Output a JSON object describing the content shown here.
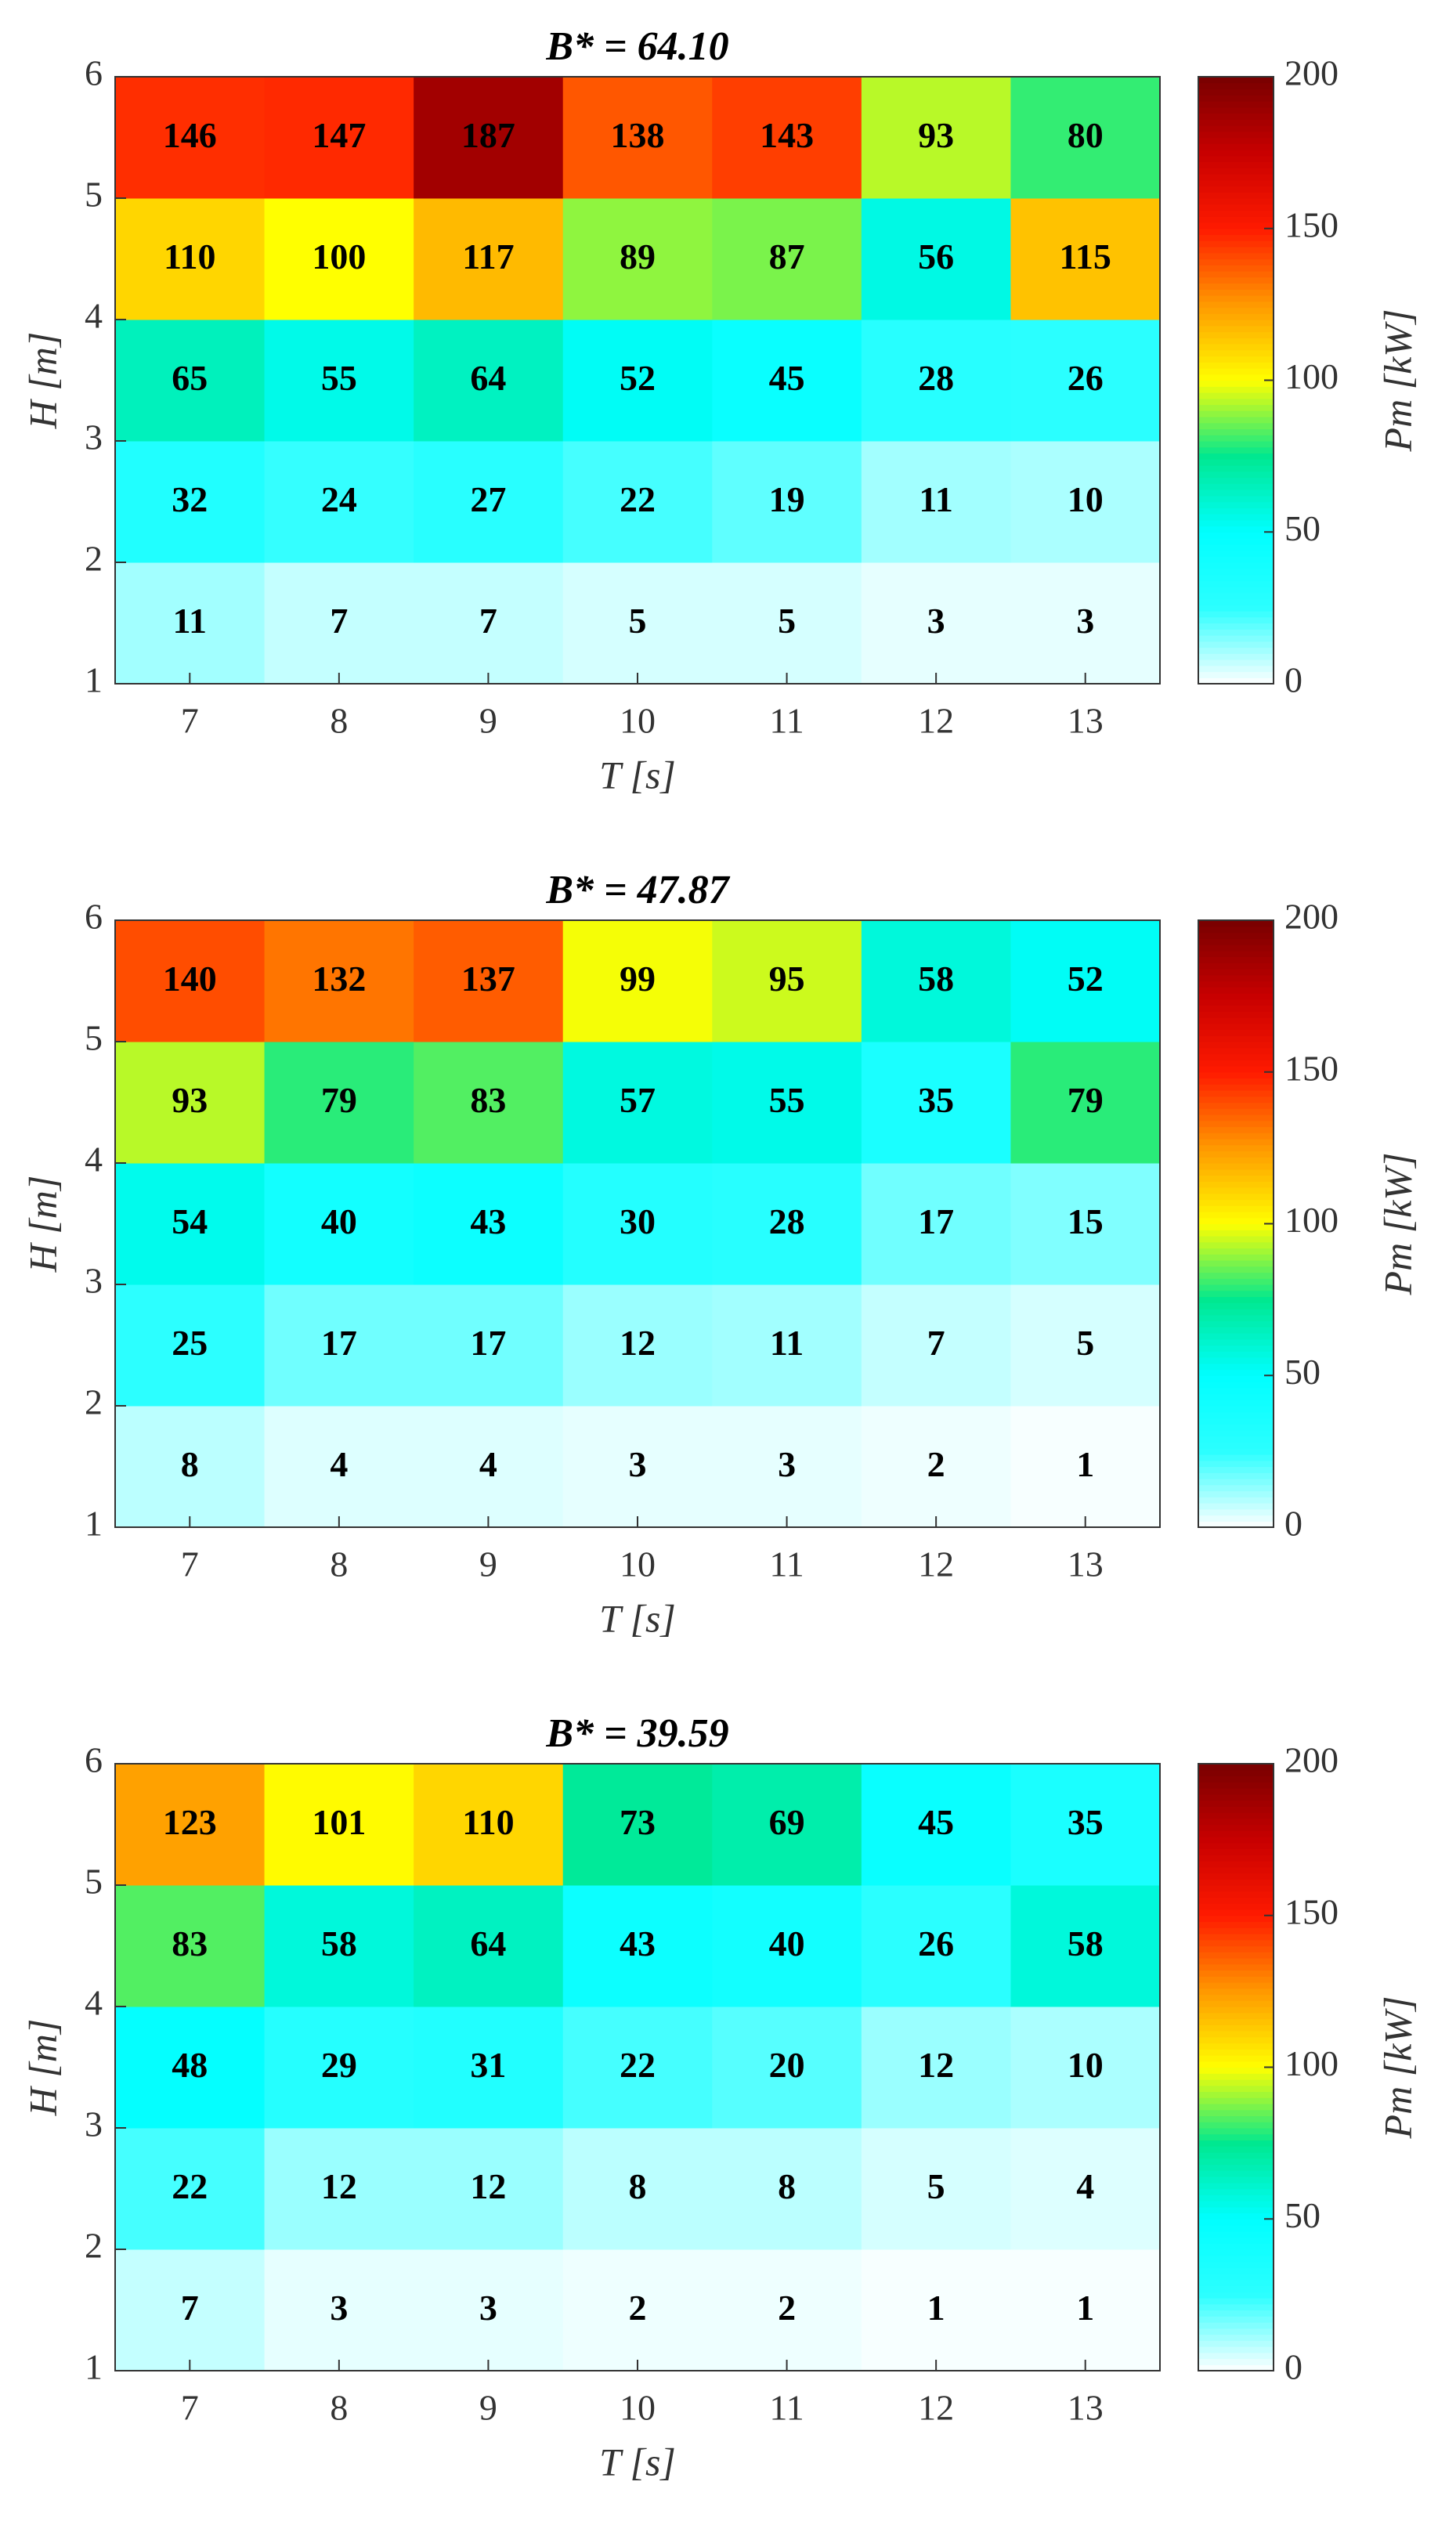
{
  "chart_data": [
    {
      "type": "heatmap",
      "title": "B* = 64.10",
      "x_label": "T [s]",
      "y_label": "H [m]",
      "colorbar_label": "Pm [kW]",
      "categories": [
        7,
        8,
        9,
        10,
        11,
        12,
        13
      ],
      "ylim": [
        1,
        6
      ],
      "yticks": [
        1,
        2,
        3,
        4,
        5,
        6
      ],
      "values": [
        [
          11,
          7,
          7,
          5,
          5,
          3,
          3
        ],
        [
          32,
          24,
          27,
          22,
          19,
          11,
          10
        ],
        [
          65,
          55,
          64,
          52,
          45,
          28,
          26
        ],
        [
          110,
          100,
          117,
          89,
          87,
          56,
          115
        ],
        [
          146,
          147,
          187,
          138,
          143,
          93,
          80
        ]
      ],
      "clim": [
        0,
        200
      ],
      "cticks": [
        0,
        50,
        100,
        150,
        200
      ],
      "colormap": [
        "#ffffff",
        "#2cffff",
        "#00ffff",
        "#00e890",
        "#ffff00",
        "#ff9900",
        "#ff1a00",
        "#c80000",
        "#780000"
      ]
    },
    {
      "type": "heatmap",
      "title": "B* = 47.87",
      "x_label": "T [s]",
      "y_label": "H [m]",
      "colorbar_label": "Pm [kW]",
      "categories": [
        7,
        8,
        9,
        10,
        11,
        12,
        13
      ],
      "ylim": [
        1,
        6
      ],
      "yticks": [
        1,
        2,
        3,
        4,
        5,
        6
      ],
      "values": [
        [
          8,
          4,
          4,
          3,
          3,
          2,
          1
        ],
        [
          25,
          17,
          17,
          12,
          11,
          7,
          5
        ],
        [
          54,
          40,
          43,
          30,
          28,
          17,
          15
        ],
        [
          93,
          79,
          83,
          57,
          55,
          35,
          79
        ],
        [
          140,
          132,
          137,
          99,
          95,
          58,
          52
        ]
      ],
      "clim": [
        0,
        200
      ],
      "cticks": [
        0,
        50,
        100,
        150,
        200
      ],
      "colormap": [
        "#ffffff",
        "#2cffff",
        "#00ffff",
        "#00e890",
        "#ffff00",
        "#ff9900",
        "#ff1a00",
        "#c80000",
        "#780000"
      ]
    },
    {
      "type": "heatmap",
      "title": "B* = 39.59",
      "x_label": "T [s]",
      "y_label": "H [m]",
      "colorbar_label": "Pm [kW]",
      "categories": [
        7,
        8,
        9,
        10,
        11,
        12,
        13
      ],
      "ylim": [
        1,
        6
      ],
      "yticks": [
        1,
        2,
        3,
        4,
        5,
        6
      ],
      "values": [
        [
          7,
          3,
          3,
          2,
          2,
          1,
          1
        ],
        [
          22,
          12,
          12,
          8,
          8,
          5,
          4
        ],
        [
          48,
          29,
          31,
          22,
          20,
          12,
          10
        ],
        [
          83,
          58,
          64,
          43,
          40,
          26,
          58
        ],
        [
          123,
          101,
          110,
          73,
          69,
          45,
          35
        ]
      ],
      "clim": [
        0,
        200
      ],
      "cticks": [
        0,
        50,
        100,
        150,
        200
      ],
      "colormap": [
        "#ffffff",
        "#2cffff",
        "#00ffff",
        "#00e890",
        "#ffff00",
        "#ff9900",
        "#ff1a00",
        "#c80000",
        "#780000"
      ]
    }
  ]
}
